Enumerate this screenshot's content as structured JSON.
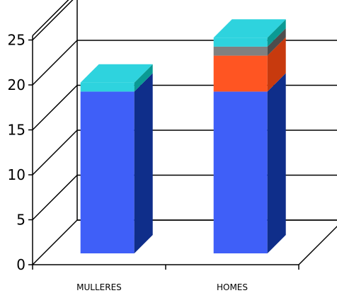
{
  "chart_data": {
    "type": "bar",
    "stacked": true,
    "three_d": true,
    "categories": [
      "MULLERES",
      "HOMES"
    ],
    "series": [
      {
        "values": [
          18,
          18
        ],
        "color": "#3f5ff8",
        "side_color": "#0f2e8a"
      },
      {
        "values": [
          0,
          4
        ],
        "color": "#ff5522",
        "side_color": "#c83a0e"
      },
      {
        "values": [
          0,
          1
        ],
        "color": "#808080",
        "side_color": "#4d4d4d"
      },
      {
        "values": [
          1,
          1
        ],
        "color": "#2ed3de",
        "side_color": "#0a9a94"
      }
    ],
    "y_ticks": [
      "0",
      "5",
      "10",
      "15",
      "20",
      "25"
    ],
    "ylim": [
      0,
      25
    ],
    "grid": true,
    "title": "",
    "xlabel": "",
    "ylabel": ""
  }
}
